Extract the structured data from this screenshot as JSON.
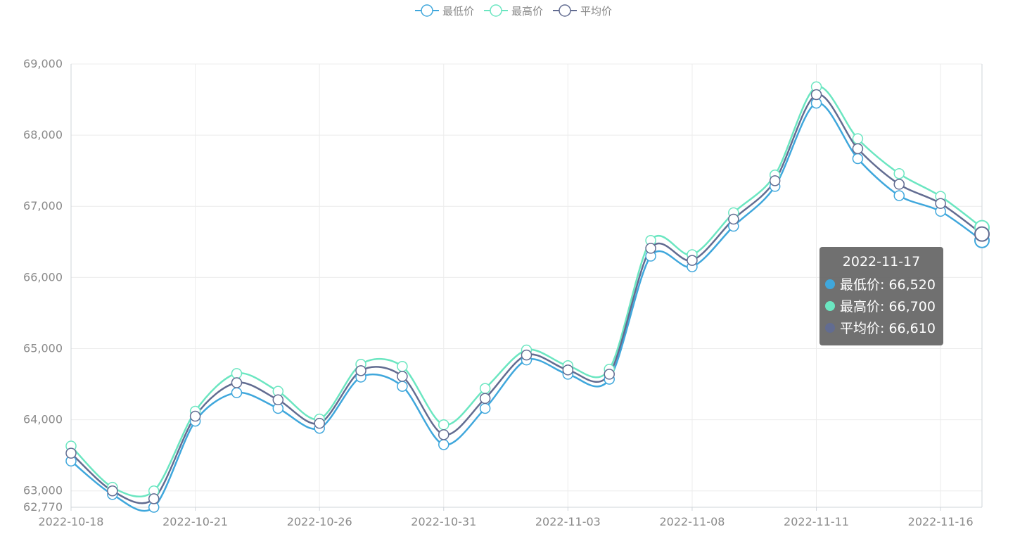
{
  "chart_data": {
    "type": "line",
    "smooth": true,
    "x": [
      "2022-10-18",
      "2022-10-19",
      "2022-10-20",
      "2022-10-21",
      "2022-10-24",
      "2022-10-25",
      "2022-10-26",
      "2022-10-27",
      "2022-10-28",
      "2022-10-31",
      "2022-11-01",
      "2022-11-02",
      "2022-11-03",
      "2022-11-04",
      "2022-11-07",
      "2022-11-08",
      "2022-11-09",
      "2022-11-10",
      "2022-11-11",
      "2022-11-14",
      "2022-11-15",
      "2022-11-16",
      "2022-11-17"
    ],
    "x_tick_labels": [
      "2022-10-18",
      "2022-10-21",
      "2022-10-26",
      "2022-10-31",
      "2022-11-03",
      "2022-11-08",
      "2022-11-11",
      "2022-11-16"
    ],
    "series": [
      {
        "name": "最低价",
        "color": "#3fa7dc",
        "values": [
          63420,
          62950,
          62770,
          63980,
          64380,
          64160,
          63880,
          64600,
          64470,
          63650,
          64160,
          64840,
          64640,
          64570,
          66300,
          66150,
          66720,
          67280,
          68450,
          67670,
          67150,
          66930,
          66520
        ]
      },
      {
        "name": "最高价",
        "color": "#6be6c1",
        "values": [
          63630,
          63050,
          63000,
          64120,
          64650,
          64400,
          64010,
          64780,
          64750,
          63930,
          64440,
          64980,
          64760,
          64710,
          66520,
          66320,
          66910,
          67440,
          68680,
          67950,
          67460,
          67140,
          66700
        ]
      },
      {
        "name": "平均价",
        "color": "#626c91",
        "values": [
          63530,
          63000,
          62890,
          64050,
          64520,
          64280,
          63950,
          64690,
          64610,
          63790,
          64300,
          64910,
          64700,
          64640,
          66410,
          66240,
          66820,
          67360,
          68570,
          67810,
          67310,
          67040,
          66610
        ]
      }
    ],
    "y_ticks": [
      "62,770",
      "63,000",
      "64,000",
      "65,000",
      "66,000",
      "67,000",
      "68,000",
      "69,000"
    ],
    "ylim": [
      62770,
      69000
    ],
    "grid": true
  },
  "tooltip": {
    "title": "2022-11-17",
    "rows": [
      {
        "label": "最低价: 66,520",
        "color": "#3fa7dc"
      },
      {
        "label": "最高价: 66,700",
        "color": "#6be6c1"
      },
      {
        "label": "平均价: 66,610",
        "color": "#626c91"
      }
    ]
  }
}
